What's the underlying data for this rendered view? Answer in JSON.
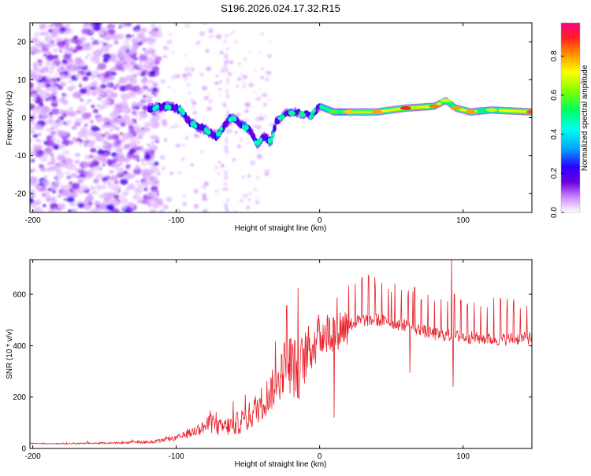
{
  "title": "S196.2026.024.17.32.R15",
  "chart_data": [
    {
      "type": "heatmap",
      "xlabel": "Height of straight line (km)",
      "ylabel": "Frequency (Hz)",
      "xlim": [
        -202,
        148
      ],
      "ylim": [
        -25,
        25
      ],
      "xticks": [
        -200,
        -100,
        0,
        100
      ],
      "yticks": [
        -20,
        -10,
        0,
        10,
        20
      ],
      "ridge": [
        {
          "x": -118,
          "f": 2.5
        },
        {
          "x": -110,
          "f": 2.8
        },
        {
          "x": -103,
          "f": 3.0
        },
        {
          "x": -97,
          "f": 2.0
        },
        {
          "x": -90,
          "f": -1.5
        },
        {
          "x": -84,
          "f": -2.5
        },
        {
          "x": -78,
          "f": -3.5
        },
        {
          "x": -72,
          "f": -5.0
        },
        {
          "x": -62,
          "f": 0.0
        },
        {
          "x": -56,
          "f": -1.5
        },
        {
          "x": -48,
          "f": -3.5
        },
        {
          "x": -44,
          "f": -7.0
        },
        {
          "x": -38,
          "f": -5.0
        },
        {
          "x": -34,
          "f": -6.5
        },
        {
          "x": -30,
          "f": -1.0
        },
        {
          "x": -24,
          "f": 1.0
        },
        {
          "x": -18,
          "f": 1.5
        },
        {
          "x": -12,
          "f": 1.0
        },
        {
          "x": -6,
          "f": 0.5
        },
        {
          "x": 0,
          "f": 3.0
        },
        {
          "x": 10,
          "f": 1.5
        },
        {
          "x": 20,
          "f": 1.5
        },
        {
          "x": 40,
          "f": 1.5
        },
        {
          "x": 60,
          "f": 2.5
        },
        {
          "x": 80,
          "f": 3.0
        },
        {
          "x": 88,
          "f": 4.5
        },
        {
          "x": 95,
          "f": 2.5
        },
        {
          "x": 105,
          "f": 1.5
        },
        {
          "x": 120,
          "f": 2.0
        },
        {
          "x": 148,
          "f": 1.5
        }
      ],
      "colorbar": {
        "label": "Normalized spectral amplitude",
        "ticks": [
          "0.0",
          "0.2",
          "0.4",
          "0.6",
          "0.8"
        ],
        "range": [
          0,
          0.97
        ]
      }
    },
    {
      "type": "line",
      "xlabel": "Height of straight line (km)",
      "ylabel": "SNR (10 * v/v)",
      "xlim": [
        -202,
        148
      ],
      "ylim": [
        0,
        735
      ],
      "xticks": [
        -200,
        -100,
        0,
        100
      ],
      "yticks": [
        0,
        200,
        400,
        600
      ],
      "series": [
        {
          "name": "SNR",
          "color": "#e8202a",
          "x": [
            -202,
            -180,
            -160,
            -140,
            -120,
            -110,
            -100,
            -90,
            -80,
            -75,
            -70,
            -60,
            -50,
            -40,
            -30,
            -25,
            -20,
            -15,
            -10,
            -5,
            0,
            10,
            20,
            30,
            40,
            50,
            60,
            70,
            80,
            90,
            100,
            110,
            120,
            130,
            148
          ],
          "y": [
            20,
            18,
            20,
            22,
            25,
            30,
            40,
            60,
            85,
            100,
            80,
            90,
            120,
            180,
            250,
            320,
            330,
            300,
            360,
            400,
            440,
            460,
            480,
            500,
            500,
            490,
            480,
            460,
            445,
            440,
            435,
            430,
            425,
            425,
            430
          ],
          "spike_amp": [
            2,
            3,
            4,
            5,
            8,
            10,
            15,
            25,
            40,
            60,
            50,
            60,
            80,
            100,
            120,
            150,
            180,
            170,
            150,
            140,
            130,
            120,
            115,
            110,
            105,
            100,
            100,
            100,
            100,
            100,
            100,
            100,
            100,
            100,
            100
          ],
          "peaks": [
            {
              "x": -23,
              "y": 555
            },
            {
              "x": 92,
              "y": 740
            },
            {
              "x": 50,
              "y": 610
            },
            {
              "x": 65,
              "y": 610
            }
          ],
          "dips": [
            {
              "x": 63,
              "y": 295
            },
            {
              "x": 93,
              "y": 240
            },
            {
              "x": 10,
              "y": 120
            }
          ]
        }
      ]
    }
  ]
}
